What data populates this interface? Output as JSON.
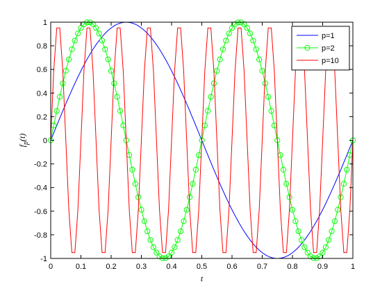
{
  "chart_data": {
    "type": "line",
    "title": "",
    "xlabel": "t",
    "ylabel": "f_p(t)",
    "xlim": [
      0,
      1
    ],
    "ylim": [
      -1,
      1
    ],
    "xticks": [
      "0",
      "0.1",
      "0.2",
      "0.3",
      "0.4",
      "0.5",
      "0.6",
      "0.7",
      "0.8",
      "0.9",
      "1"
    ],
    "yticks": [
      "-1",
      "-0.8",
      "-0.6",
      "-0.4",
      "-0.2",
      "0",
      "0.2",
      "0.4",
      "0.6",
      "0.8",
      "1"
    ],
    "grid": false,
    "legend_position": "top-right",
    "series": [
      {
        "name": "p=1",
        "function": "sin(2*pi*1*t)",
        "color": "#0000ff",
        "marker": "none"
      },
      {
        "name": "p=2",
        "function": "sin(2*pi*2*t)",
        "color": "#00ff00",
        "marker": "circle"
      },
      {
        "name": "p=10",
        "function": "sin(2*pi*10*t)",
        "color": "#ff0000",
        "marker": "none"
      }
    ]
  }
}
